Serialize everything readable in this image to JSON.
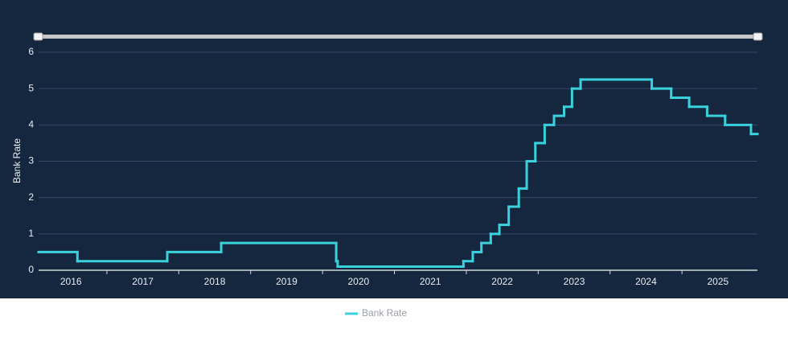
{
  "chart_data": {
    "type": "step-line",
    "ylabel": "Bank Rate",
    "x": [
      2016.05,
      2016.59,
      2017.84,
      2018.59,
      2020.19,
      2020.21,
      2021.96,
      2022.09,
      2022.21,
      2022.34,
      2022.46,
      2022.59,
      2022.73,
      2022.84,
      2022.96,
      2023.09,
      2023.22,
      2023.36,
      2023.47,
      2023.59,
      2024.58,
      2024.85,
      2025.1,
      2025.35,
      2025.6,
      2025.96
    ],
    "series": [
      {
        "name": "Bank Rate",
        "color": "#3ad0dc",
        "values": [
          0.5,
          0.25,
          0.5,
          0.75,
          0.25,
          0.1,
          0.25,
          0.5,
          0.75,
          1.0,
          1.25,
          1.75,
          2.25,
          3.0,
          3.5,
          4.0,
          4.25,
          4.5,
          5.0,
          5.25,
          5.0,
          4.75,
          4.5,
          4.25,
          4.0,
          3.75
        ]
      }
    ],
    "xlim": [
      2016.05,
      2026.05
    ],
    "xticks": [
      {
        "value": 2016.5,
        "label": "2016"
      },
      {
        "value": 2017.5,
        "label": "2017"
      },
      {
        "value": 2018.5,
        "label": "2018"
      },
      {
        "value": 2019.5,
        "label": "2019"
      },
      {
        "value": 2020.5,
        "label": "2020"
      },
      {
        "value": 2021.5,
        "label": "2021"
      },
      {
        "value": 2022.5,
        "label": "2022"
      },
      {
        "value": 2023.5,
        "label": "2023"
      },
      {
        "value": 2024.5,
        "label": "2024"
      },
      {
        "value": 2025.5,
        "label": "2025"
      }
    ],
    "ylim": [
      0,
      6
    ],
    "yticks": [
      0,
      1,
      2,
      3,
      4,
      5,
      6
    ],
    "grid": true
  }
}
